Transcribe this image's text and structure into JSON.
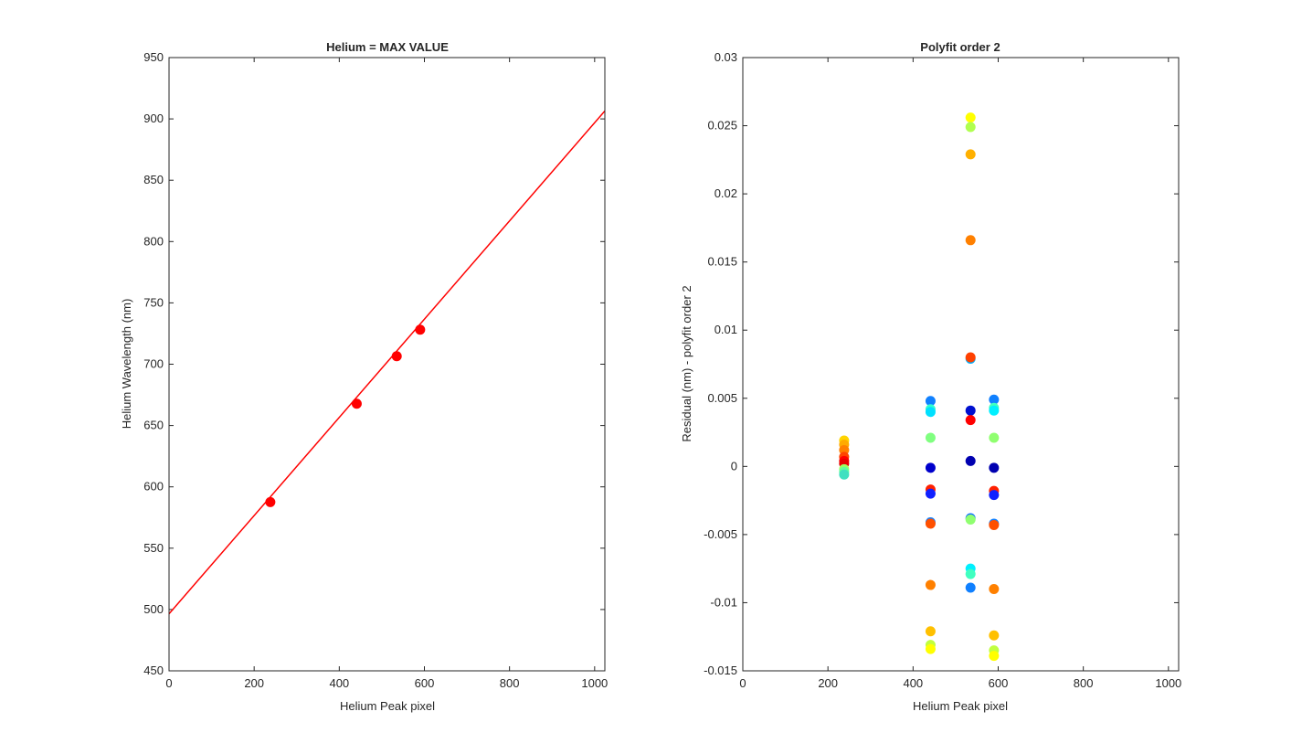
{
  "chart_data": [
    {
      "type": "line",
      "title": "Helium = MAX VALUE",
      "xlabel": "Helium Peak pixel",
      "ylabel": "Helium Wavelength (nm)",
      "xlim": [
        0,
        1024
      ],
      "ylim": [
        450,
        950
      ],
      "xticks": [
        0,
        200,
        400,
        600,
        800,
        1000
      ],
      "yticks": [
        450,
        500,
        550,
        600,
        650,
        700,
        750,
        800,
        850,
        900,
        950
      ],
      "grid": false,
      "series": [
        {
          "kind": "line",
          "color": "#ff0000",
          "x": [
            0,
            1024
          ],
          "y": [
            496.5,
            906.5
          ]
        },
        {
          "kind": "scatter",
          "color": "#ff0000",
          "x": [
            238,
            441,
            535,
            590
          ],
          "y": [
            587.6,
            667.8,
            706.5,
            728.1
          ]
        }
      ]
    },
    {
      "type": "scatter",
      "title": "Polyfit order 2",
      "xlabel": "Helium Peak pixel",
      "ylabel": "Residual (nm) - polyfit order 2",
      "xlim": [
        0,
        1024
      ],
      "ylim": [
        -0.015,
        0.03
      ],
      "xticks": [
        0,
        200,
        400,
        600,
        800,
        1000
      ],
      "yticks": [
        -0.015,
        -0.01,
        -0.005,
        0,
        0.005,
        0.01,
        0.015,
        0.02,
        0.025,
        0.03
      ],
      "ytick_labels": [
        "-0.015",
        "-0.01",
        "-0.005",
        "0",
        "0.005",
        "0.01",
        "0.015",
        "0.02",
        "0.025",
        "0.03"
      ],
      "grid": false,
      "points": [
        {
          "x": 238,
          "y": 0.0019,
          "color": "#ffd400"
        },
        {
          "x": 238,
          "y": 0.0016,
          "color": "#ffaa00"
        },
        {
          "x": 238,
          "y": 0.0012,
          "color": "#ff7f00"
        },
        {
          "x": 238,
          "y": 0.0007,
          "color": "#ff4400"
        },
        {
          "x": 238,
          "y": 0.0004,
          "color": "#ff0000"
        },
        {
          "x": 238,
          "y": 0.0002,
          "color": "#e60000"
        },
        {
          "x": 238,
          "y": -0.0002,
          "color": "#9cff60"
        },
        {
          "x": 238,
          "y": -0.0004,
          "color": "#60ff9c"
        },
        {
          "x": 238,
          "y": -0.0006,
          "color": "#40e0c0"
        },
        {
          "x": 441,
          "y": 0.0048,
          "color": "#1080ff"
        },
        {
          "x": 441,
          "y": 0.0042,
          "color": "#30ffd0"
        },
        {
          "x": 441,
          "y": 0.004,
          "color": "#00e0ff"
        },
        {
          "x": 441,
          "y": 0.0021,
          "color": "#80ff80"
        },
        {
          "x": 441,
          "y": -0.0001,
          "color": "#0000cc"
        },
        {
          "x": 441,
          "y": -0.0017,
          "color": "#ff2000"
        },
        {
          "x": 441,
          "y": -0.002,
          "color": "#1020ff"
        },
        {
          "x": 441,
          "y": -0.0041,
          "color": "#1080ff"
        },
        {
          "x": 441,
          "y": -0.0042,
          "color": "#ff5000"
        },
        {
          "x": 441,
          "y": -0.0087,
          "color": "#ff8000"
        },
        {
          "x": 441,
          "y": -0.0121,
          "color": "#ffc000"
        },
        {
          "x": 441,
          "y": -0.0131,
          "color": "#c0ff40"
        },
        {
          "x": 441,
          "y": -0.0134,
          "color": "#ffff00"
        },
        {
          "x": 535,
          "y": 0.0256,
          "color": "#ffff00"
        },
        {
          "x": 535,
          "y": 0.0249,
          "color": "#b0ff50"
        },
        {
          "x": 535,
          "y": 0.0229,
          "color": "#ffb000"
        },
        {
          "x": 535,
          "y": 0.0166,
          "color": "#ff8000"
        },
        {
          "x": 535,
          "y": 0.0079,
          "color": "#00b0ff"
        },
        {
          "x": 535,
          "y": 0.008,
          "color": "#ff4000"
        },
        {
          "x": 535,
          "y": 0.0041,
          "color": "#0010d0"
        },
        {
          "x": 535,
          "y": 0.0034,
          "color": "#ff0000"
        },
        {
          "x": 535,
          "y": 0.0004,
          "color": "#0000b0"
        },
        {
          "x": 535,
          "y": -0.0038,
          "color": "#1070ff"
        },
        {
          "x": 535,
          "y": -0.0039,
          "color": "#90ff70"
        },
        {
          "x": 535,
          "y": -0.0075,
          "color": "#00f0ff"
        },
        {
          "x": 535,
          "y": -0.0079,
          "color": "#40ffc0"
        },
        {
          "x": 535,
          "y": -0.0089,
          "color": "#1080ff"
        },
        {
          "x": 590,
          "y": 0.0049,
          "color": "#1080ff"
        },
        {
          "x": 590,
          "y": 0.0043,
          "color": "#40ffc0"
        },
        {
          "x": 590,
          "y": 0.0041,
          "color": "#00f0ff"
        },
        {
          "x": 590,
          "y": 0.0021,
          "color": "#90ff70"
        },
        {
          "x": 590,
          "y": -0.0001,
          "color": "#0000b0"
        },
        {
          "x": 590,
          "y": -0.0018,
          "color": "#ff2000"
        },
        {
          "x": 590,
          "y": -0.0021,
          "color": "#1020ff"
        },
        {
          "x": 590,
          "y": -0.0042,
          "color": "#1080ff"
        },
        {
          "x": 590,
          "y": -0.0043,
          "color": "#ff5000"
        },
        {
          "x": 590,
          "y": -0.009,
          "color": "#ff8000"
        },
        {
          "x": 590,
          "y": -0.0124,
          "color": "#ffc000"
        },
        {
          "x": 590,
          "y": -0.0135,
          "color": "#c0ff40"
        },
        {
          "x": 590,
          "y": -0.0139,
          "color": "#ffff00"
        }
      ]
    }
  ]
}
